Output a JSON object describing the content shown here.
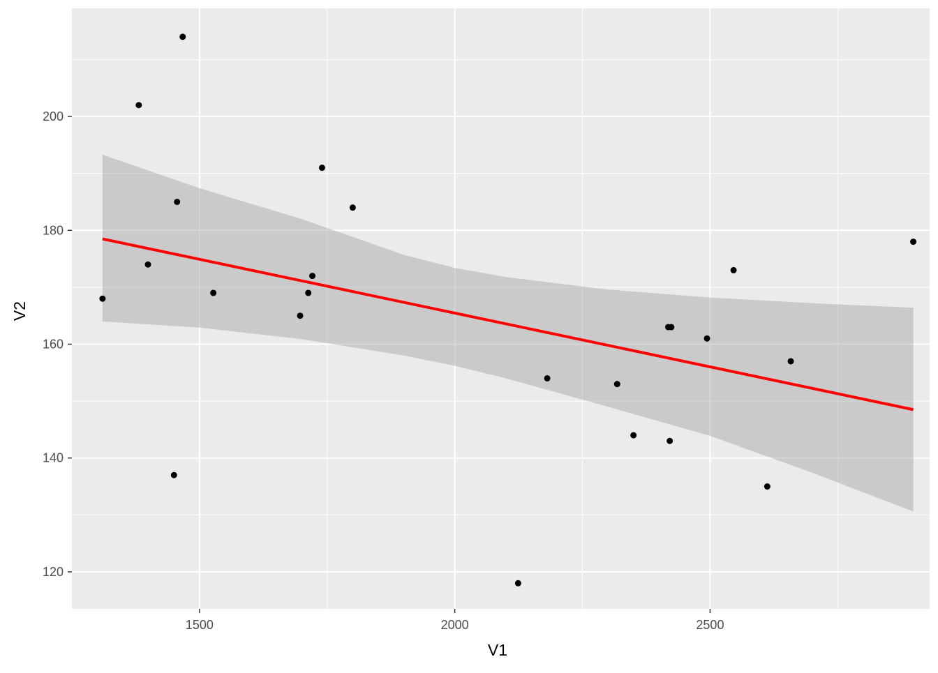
{
  "chart_data": {
    "type": "scatter",
    "title": "",
    "xlabel": "V1",
    "ylabel": "V2",
    "xlim": [
      1250,
      2930
    ],
    "ylim": [
      113.5,
      219
    ],
    "x_ticks": [
      1500,
      2000,
      2500
    ],
    "y_ticks": [
      120,
      140,
      160,
      180,
      200
    ],
    "grid": true,
    "legend": "none",
    "points": [
      {
        "x": 1310,
        "y": 168
      },
      {
        "x": 1381,
        "y": 202
      },
      {
        "x": 1399,
        "y": 174
      },
      {
        "x": 1450,
        "y": 137
      },
      {
        "x": 1456,
        "y": 185
      },
      {
        "x": 1467,
        "y": 214
      },
      {
        "x": 1527,
        "y": 169
      },
      {
        "x": 1697,
        "y": 165
      },
      {
        "x": 1713,
        "y": 169
      },
      {
        "x": 1721,
        "y": 172
      },
      {
        "x": 1740,
        "y": 191
      },
      {
        "x": 1800,
        "y": 184
      },
      {
        "x": 2124,
        "y": 118
      },
      {
        "x": 2181,
        "y": 154
      },
      {
        "x": 2318,
        "y": 153
      },
      {
        "x": 2350,
        "y": 144
      },
      {
        "x": 2418,
        "y": 163
      },
      {
        "x": 2424,
        "y": 163
      },
      {
        "x": 2421,
        "y": 143
      },
      {
        "x": 2494,
        "y": 161
      },
      {
        "x": 2546,
        "y": 173
      },
      {
        "x": 2612,
        "y": 135
      },
      {
        "x": 2658,
        "y": 157
      },
      {
        "x": 2898,
        "y": 178
      }
    ],
    "fit_line": {
      "x": [
        1310,
        2898
      ],
      "y": [
        178.5,
        148.5
      ]
    },
    "confidence_band": {
      "x": [
        1310,
        1500,
        1700,
        1900,
        2000,
        2100,
        2300,
        2500,
        2700,
        2898
      ],
      "lower": [
        164,
        162.9,
        160.9,
        158.0,
        156.2,
        154.0,
        149.0,
        143.9,
        137.4,
        130.6
      ],
      "upper": [
        193.3,
        187.4,
        182.0,
        175.7,
        173.4,
        171.8,
        169.6,
        168.2,
        167.2,
        166.4
      ]
    },
    "colors": {
      "panel": "#EBEBEB",
      "grid": "#FFFFFF",
      "points": "#000000",
      "fit_line": "#FF0000",
      "band": "#CCCCCC"
    }
  }
}
